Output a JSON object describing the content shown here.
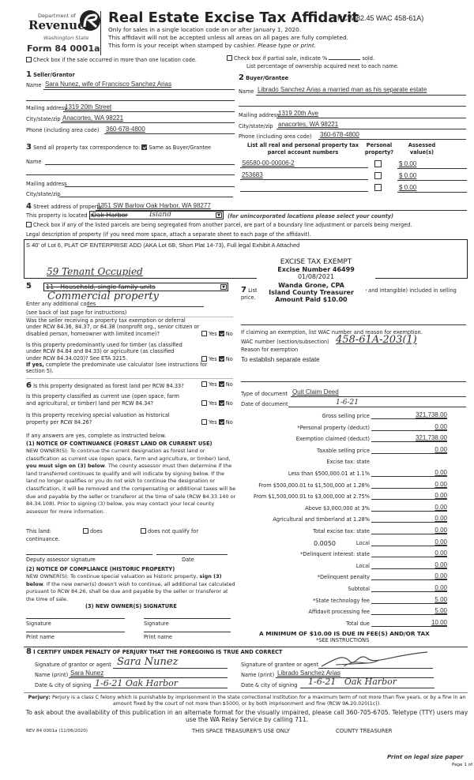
{
  "header": {
    "dept": "Department of",
    "revenue": "Revenue",
    "state": "Washington State",
    "form_number": "Form 84 0001a",
    "title": "Real Estate Excise Tax Affidavit",
    "citation": "(RCW 82.45 WAC 458-61A)",
    "line1": "Only for sales in a single location code on or after January 1, 2020.",
    "line2": "This affidavit will not be accepted unless all areas on all pages are fully completed.",
    "line3": "This form is your receipt when stamped by cashier.",
    "line3_italic": "Please type or print."
  },
  "top": {
    "multi_location": "Check box if the sale occurred in more than one location code.",
    "partial_sale": "Check box if partial sale, indicate %",
    "sold": "sold.",
    "list_pct": "List percentage of ownership acquired next to each name."
  },
  "seller": {
    "num": "1",
    "heading": "Seller/Grantor",
    "name_label": "Name",
    "name": "Sara Nunez, wife of Francisco Sanchez Arias",
    "mail_label": "Mailing address",
    "mail": "1319 20th Street",
    "city_label": "City/state/zip",
    "city": "Anacortes, WA 98221",
    "phone_label": "Phone (including area code)",
    "phone": "360-678-4800"
  },
  "buyer": {
    "num": "2",
    "heading": "Buyer/Grantee",
    "name_label": "Name",
    "name": "Librado Sanchez Arias a married man as his separate estate",
    "mail_label": "Mailing address",
    "mail": "1319 20th Ave",
    "city_label": "City/state/zip",
    "city": "anacortes, WA 98221",
    "phone_label": "Phone (including area code)",
    "phone": "360-678-4800"
  },
  "section3": {
    "num": "3",
    "label": "Send all property tax correspondence to:",
    "same_as": "Same as Buyer/Grantee",
    "same_checked": true,
    "name_label": "Name",
    "mail_label": "Mailing address",
    "city_label": "City/state/zip"
  },
  "parcels": {
    "col1": "List all real and personal property tax parcel account numbers",
    "col2": "Personal property?",
    "col3": "Assessed value(s)",
    "rows": [
      {
        "number": "S6580-00-00006-2",
        "personal": false,
        "value": "$ 0.00"
      },
      {
        "number": "253683",
        "personal": false,
        "value": "$ 0.00"
      },
      {
        "number": "",
        "personal": false,
        "value": "$ 0.00"
      }
    ]
  },
  "section4": {
    "num": "4",
    "street_label": "Street address of property",
    "street": "1351 SW Barlow Oak Harbor, WA 98277",
    "located_label": "This property is located in",
    "located_value": "Oak Harbor",
    "located_handwritten": "Island",
    "located_note": "(for unincorporated locations please select your county)",
    "segregated": "Check box if any of the listed parcels are being segregated from another parcel, are part of a boundary line adjustment or parcels being merged.",
    "legal_label": "Legal description of property (if you need more space, attach a separate sheet to each page of the affidavit).",
    "legal": "S 40' of Lot 6, PLAT OF ENTERPRISE ADD (AKA Lot 6B, Short Plat 14-73), Full legal Exhibit A Attached",
    "handwritten_note": "59 Tenant Occupied"
  },
  "stamp": {
    "line1": "EXCISE TAX EXEMPT",
    "line2": "Excise Number 46499",
    "line3": "01/08/2021",
    "line4": "Wanda Grone, CPA",
    "line5": "Island County Treasurer",
    "line6": "Amount Paid $10.00"
  },
  "section5": {
    "num": "5",
    "use_code": "11 - Household, single family units",
    "handwritten": "Commercial property",
    "additional": "Enter any additional codes",
    "see_back": "(see back of last page for instructions)",
    "q1": "Was the seller receiving a property tax exemption or deferral under RCW 84.36, 84.37, or 84.38 (nonprofit org., senior citizen or disabled person, homeowner with limited income)?",
    "q2": "Is this property predominantly used for timber (as classified under RCW 84.84 and 84.33) or agriculture (as classified under RCW 84.34.020)? See ETA 3215.",
    "if_yes_bold": "If yes,",
    "if_yes": "complete the predominate use calculator (see instructions for section 5).",
    "yes": "Yes",
    "no": "No"
  },
  "section6": {
    "num": "6",
    "q1": "Is this property designated as forest land per RCW 84.33?",
    "q2": "Is this property classified as current use (open space, farm and agricultural, or timber) land per RCW 84.34?",
    "q3": "Is this property receiving special valuation as historical property per RCW 84.26?",
    "if_any": "If any answers are yes, complete as instructed below.",
    "n1_title": "(1) NOTICE OF CONTINUANCE (FOREST LAND OR CURRENT USE)",
    "n1_a": "NEW OWNER(S): To continue the current designation as forest land or classification as current use (open space, farm and agriculture, or timber) land,",
    "n1_b": "you must sign on (3) below",
    "n1_c": ". The county assessor must then determine if the land transferred continues to qualify and will indicate by signing below. If the land no longer qualifies or you do not wish to continue the designation or classification, it will be removed and the compensating or additional taxes will be due and payable by the seller or transferor at the time of sale (RCW 84.33.140 or 84.34.108). Prior to signing (3) below, you may contact your local county assessor for more information.",
    "this_land": "This land:",
    "does": "does",
    "does_not": "does not qualify for",
    "continuance": "continuance.",
    "deputy": "Deputy assessor signature",
    "date": "Date",
    "n2_title": "(2) NOTICE OF COMPLIANCE (HISTORIC PROPERTY)",
    "n2_a": "NEW OWNER(S): To continue special valuation as historic property,",
    "n2_b": "sign (3) below",
    "n2_c": ". If the new owner(s) doesn't wish to continue, all additional tax calculated pursuant to RCW 84.26, shall be due and payable by the seller or transferor at the time of sale.",
    "n3_title": "(3) NEW OWNER(S) SIGNATURE",
    "signature": "Signature",
    "print_name": "Print name"
  },
  "section7": {
    "num": "7",
    "text_a": "List",
    "text_b": "e and intangible) included in selling",
    "text_c": "price.",
    "claim": "If claiming an exemption, list WAC number and reason for exemption.",
    "wac_label": "WAC number (section/subsection)",
    "wac": "458-61A-203(1)",
    "reason_label": "Reason for exemption",
    "reason": "To establish separate estate",
    "doc_type_label": "Type of document",
    "doc_type": "Quit Claim Deed",
    "doc_date_label": "Date of document",
    "doc_date": "1-6-21"
  },
  "fees": {
    "rows": [
      {
        "label": "Gross selling price",
        "value": "321,738.00"
      },
      {
        "label": "*Personal property (deduct)",
        "value": "0.00"
      },
      {
        "label": "Exemption claimed (deduct)",
        "value": "321,738.00"
      },
      {
        "label": "Taxable selling price",
        "value": "0.00"
      },
      {
        "label": "Excise tax: state",
        "value": null
      },
      {
        "label": "Less than $500,000.01 at 1.1%",
        "value": "0.00"
      },
      {
        "label": "From $500,000.01 to $1,500,000 at 1.28%",
        "value": "0.00"
      },
      {
        "label": "From $1,500,000.01 to $3,000,000 at 2.75%",
        "value": "0.00"
      },
      {
        "label": "Above $3,000,000 at 3%",
        "value": "0.00"
      },
      {
        "label": "Agricultural and timberland at 1.28%",
        "value": "0.00"
      },
      {
        "label": "Total excise tax: state",
        "value": "0.00"
      },
      {
        "label": "Local",
        "value": "0.00"
      },
      {
        "label": "*Delinquent interest: state",
        "value": "0.00"
      },
      {
        "label": "Local",
        "value": "0.00"
      },
      {
        "label": "*Delinquent penalty",
        "value": "0.00"
      },
      {
        "label": "Subtotal",
        "value": "0.00"
      },
      {
        "label": "*State technology fee",
        "value": "5.00"
      },
      {
        "label": "Affidavit processing fee",
        "value": "5.00"
      },
      {
        "label": "Total due",
        "value": "10.00"
      }
    ],
    "local_rate": "0.0050",
    "minimum": "A MINIMUM OF $10.00 IS DUE IN FEE(S) AND/OR TAX",
    "see_instructions": "*SEE INSTRUCTIONS"
  },
  "section8": {
    "num": "8",
    "certify": "I CERTIFY UNDER PENALTY OF PERJURY THAT THE FOREGOING IS TRUE AND CORRECT",
    "grantor_sig_label": "Signature of grantor or agent",
    "grantor_sig": "Sara Nunez",
    "grantor_name_label": "Name (print)",
    "grantor_name": "Sara Nunez",
    "grantor_date_label": "Date & city of signing",
    "grantor_date": "1-6-21  Oak Harbor",
    "grantee_sig_label": "Signature of grantee or agent",
    "grantee_name_label": "Name (print)",
    "grantee_name": "Librado Sanchez Arias",
    "grantee_date_label": "Date & city of signing",
    "grantee_date": "1-6-21   Oak Harbor"
  },
  "footer": {
    "perjury_bold": "Perjury:",
    "perjury": "Perjury is a class C felony which is punishable by imprisonment in the state correctional institution for a maximum term of not more than five years, or by a fine in an amount fixed by the court of not more than $5000, or by both imprisonment and fine (RCW 9A.20.020(1c)).",
    "alt_format": "To ask about the availability of this publication in an alternate format for the visually impaired, please call 360-705-6705. Teletype (TTY) users may use the WA Relay Service by calling 711.",
    "rev": "REV 84 0001a (11/06/2020)",
    "treasurer_use": "THIS SPACE TREASURER'S USE ONLY",
    "county_treasurer": "COUNTY TREASURER",
    "print_legal": "Print on legal size paper",
    "page": "Page 1 of"
  }
}
